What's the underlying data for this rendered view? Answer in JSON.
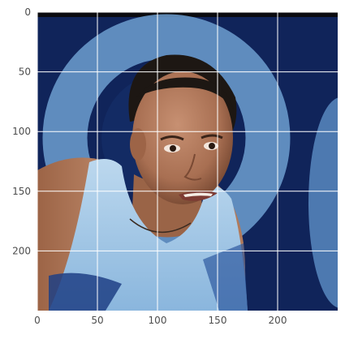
{
  "axes": {
    "x_ticks": [
      {
        "value": 0,
        "label": "0"
      },
      {
        "value": 50,
        "label": "50"
      },
      {
        "value": 100,
        "label": "100"
      },
      {
        "value": 150,
        "label": "150"
      },
      {
        "value": 200,
        "label": "200"
      }
    ],
    "y_ticks": [
      {
        "value": 0,
        "label": "0"
      },
      {
        "value": 50,
        "label": "50"
      },
      {
        "value": 100,
        "label": "100"
      },
      {
        "value": 150,
        "label": "150"
      },
      {
        "value": 200,
        "label": "200"
      }
    ],
    "xlim": [
      0,
      250
    ],
    "ylim": [
      250,
      0
    ],
    "grid": true
  },
  "image": {
    "subject": "portrait-photo",
    "colors": {
      "background_navy": "#10245a",
      "background_ring": "#6d9fd0",
      "skin": "#b47d5f",
      "hair": "#1d1713",
      "shirt": "#a7cbe6",
      "grid": "#ffffff"
    }
  }
}
